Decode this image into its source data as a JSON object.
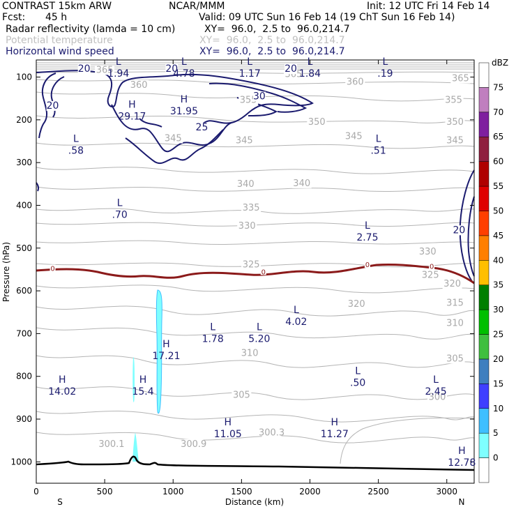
{
  "header": {
    "model": "CONTRAST 15km ARW",
    "center": "NCAR/MMM",
    "init": "Init: 12 UTC Fri 14 Feb 14",
    "fcst_label": "Fcst:",
    "fcst_value": "45 h",
    "valid": "Valid: 09 UTC Sun 16 Feb 14 (19 ChT Sun 16 Feb 14)"
  },
  "fields": [
    {
      "name": "Radar reflectivity (lamda = 10 cm)",
      "xy": "XY=  96.0,  2.5 to  96.0,214.7",
      "style": "black"
    },
    {
      "name": "Potential temperature",
      "xy": "XY=  96.0,  2.5 to  96.0,214.7",
      "style": "ghost"
    },
    {
      "name": "Horizontal wind speed",
      "xy": "XY=  96.0,  2.5 to  96.0,214.7",
      "style": "navy"
    }
  ],
  "chart_data": {
    "type": "cross-section",
    "xlabel": "Distance (km)",
    "ylabel": "Pressure (hPa)",
    "xlim": [
      0,
      3200
    ],
    "ylim": [
      1050,
      60
    ],
    "xticks": [
      0,
      500,
      1000,
      1500,
      2000,
      2500,
      3000
    ],
    "yticks": [
      100,
      200,
      300,
      400,
      500,
      600,
      700,
      800,
      900,
      1000
    ],
    "end_labels": {
      "left": "S",
      "right": "N"
    },
    "colorbar": {
      "unit": "dBZ",
      "levels": [
        0,
        5,
        10,
        15,
        20,
        25,
        30,
        35,
        40,
        45,
        50,
        55,
        60,
        65,
        70,
        75
      ],
      "colors": [
        "#ffffff",
        "#7fffff",
        "#3fbfff",
        "#3f3fff",
        "#3f7fbf",
        "#3fbf3f",
        "#00bf00",
        "#007f00",
        "#ffbf00",
        "#ff7f00",
        "#ff3f00",
        "#df0000",
        "#af0000",
        "#8f1f3f",
        "#7f1f9f",
        "#c07fbf",
        "#ffffff"
      ]
    },
    "theta_labels": [
      {
        "text": "365",
        "x": 500,
        "p": 90
      },
      {
        "text": "360",
        "x": 750,
        "p": 125
      },
      {
        "text": "365",
        "x": 1880,
        "p": 100
      },
      {
        "text": "360",
        "x": 2330,
        "p": 118
      },
      {
        "text": "365",
        "x": 3100,
        "p": 110
      },
      {
        "text": "355",
        "x": 1550,
        "p": 160
      },
      {
        "text": "355",
        "x": 3050,
        "p": 160
      },
      {
        "text": "350",
        "x": 2050,
        "p": 212
      },
      {
        "text": "350",
        "x": 3060,
        "p": 212
      },
      {
        "text": "345",
        "x": 1000,
        "p": 250
      },
      {
        "text": "345",
        "x": 1520,
        "p": 255
      },
      {
        "text": "345",
        "x": 2320,
        "p": 245
      },
      {
        "text": "345",
        "x": 3060,
        "p": 255
      },
      {
        "text": "340",
        "x": 1530,
        "p": 357
      },
      {
        "text": "340",
        "x": 1940,
        "p": 355
      },
      {
        "text": "335",
        "x": 1570,
        "p": 412
      },
      {
        "text": "330",
        "x": 1540,
        "p": 455
      },
      {
        "text": "330",
        "x": 2860,
        "p": 515
      },
      {
        "text": "325",
        "x": 1570,
        "p": 545
      },
      {
        "text": "325",
        "x": 2880,
        "p": 570
      },
      {
        "text": "320",
        "x": 3040,
        "p": 590
      },
      {
        "text": "320",
        "x": 2340,
        "p": 637
      },
      {
        "text": "315",
        "x": 3060,
        "p": 635
      },
      {
        "text": "310",
        "x": 3060,
        "p": 682
      },
      {
        "text": "310",
        "x": 1560,
        "p": 752
      },
      {
        "text": "305",
        "x": 3060,
        "p": 765
      },
      {
        "text": "305",
        "x": 1500,
        "p": 850
      },
      {
        "text": "300",
        "x": 2930,
        "p": 855
      },
      {
        "text": "300.3",
        "x": 1720,
        "p": 938
      },
      {
        "text": "300.1",
        "x": 550,
        "p": 965
      },
      {
        "text": "300.9",
        "x": 1150,
        "p": 965
      }
    ],
    "wind_speed_labels": [
      {
        "text": "20",
        "x": 350,
        "p": 88
      },
      {
        "text": "20",
        "x": 990,
        "p": 88
      },
      {
        "text": "20",
        "x": 1860,
        "p": 88
      },
      {
        "text": "30",
        "x": 1630,
        "p": 152
      },
      {
        "text": "20",
        "x": 120,
        "p": 174
      },
      {
        "text": "25",
        "x": 1210,
        "p": 225
      },
      {
        "text": "20",
        "x": 3090,
        "p": 465
      }
    ],
    "freezing_level_labels": [
      {
        "text": "0",
        "x": 120,
        "p": 550
      },
      {
        "text": "0",
        "x": 1660,
        "p": 558
      },
      {
        "text": "0",
        "x": 2420,
        "p": 541
      },
      {
        "text": "0",
        "x": 2890,
        "p": 545
      }
    ],
    "extrema": [
      {
        "kind": "L",
        "value": "1.94",
        "x": 600,
        "p": 75
      },
      {
        "kind": "L",
        "value": "4.78",
        "x": 1080,
        "p": 75
      },
      {
        "kind": "L",
        "value": "1.17",
        "x": 1560,
        "p": 75
      },
      {
        "kind": "L",
        "value": "1.84",
        "x": 2000,
        "p": 75
      },
      {
        "kind": "L",
        "value": ".19",
        "x": 2550,
        "p": 75
      },
      {
        "kind": "H",
        "value": "29.17",
        "x": 700,
        "p": 175
      },
      {
        "kind": "H",
        "value": "31.95",
        "x": 1080,
        "p": 163
      },
      {
        "kind": "L",
        "value": ".58",
        "x": 290,
        "p": 255
      },
      {
        "kind": "L",
        "value": ".51",
        "x": 2500,
        "p": 255
      },
      {
        "kind": "L",
        "value": ".70",
        "x": 610,
        "p": 405
      },
      {
        "kind": "L",
        "value": "2.75",
        "x": 2420,
        "p": 458
      },
      {
        "kind": "L",
        "value": "4.02",
        "x": 1900,
        "p": 655
      },
      {
        "kind": "L",
        "value": "1.78",
        "x": 1290,
        "p": 695
      },
      {
        "kind": "L",
        "value": "5.20",
        "x": 1630,
        "p": 695
      },
      {
        "kind": "H",
        "value": "17.21",
        "x": 950,
        "p": 735
      },
      {
        "kind": "L",
        "value": ".50",
        "x": 2350,
        "p": 798
      },
      {
        "kind": "H",
        "value": "14.02",
        "x": 190,
        "p": 818
      },
      {
        "kind": "H",
        "value": "15.4",
        "x": 780,
        "p": 818
      },
      {
        "kind": "L",
        "value": "2.45",
        "x": 2920,
        "p": 818
      },
      {
        "kind": "H",
        "value": "11.05",
        "x": 1400,
        "p": 918
      },
      {
        "kind": "H",
        "value": "11.27",
        "x": 2180,
        "p": 918
      },
      {
        "kind": "H",
        "value": "12.78",
        "x": 3110,
        "p": 985
      }
    ]
  }
}
